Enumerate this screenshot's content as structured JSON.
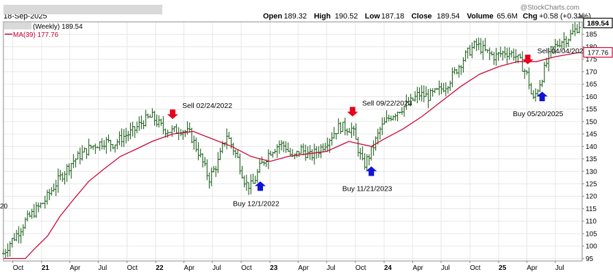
{
  "header": {
    "date": "18-Sep-2025",
    "watermark": "@StockCharts.com",
    "ohlc": [
      {
        "label": "Open",
        "value": "189.32"
      },
      {
        "label": "High",
        "value": "190.52"
      },
      {
        "label": "Low",
        "value": "187.18"
      },
      {
        "label": "Close",
        "value": "189.54"
      },
      {
        "label": "Volume",
        "value": "65.6M"
      },
      {
        "label": "Chg",
        "value": "+0.58 (+0.31%)"
      }
    ]
  },
  "legend": {
    "price": "(Weekly) 189.54",
    "ma": "MA(39) 177.76"
  },
  "colors": {
    "price": "#1a5e1a",
    "ma": "#cc0033",
    "sell_arrow": "#e8001c",
    "buy_arrow": "#1414d6",
    "grid": "#e6e6e6",
    "last_price_box": "#000000",
    "ma_box": "#cc0033"
  },
  "chart_data": {
    "type": "ohlc",
    "ylim": [
      94,
      190
    ],
    "xlim": [
      "2020-09-01",
      "2025-09-25"
    ],
    "y_ticks": [
      95,
      100,
      105,
      110,
      115,
      120,
      125,
      130,
      135,
      140,
      145,
      150,
      155,
      160,
      165,
      170,
      175,
      180,
      185
    ],
    "x_ticks": [
      {
        "date": "2020-10-01",
        "label": "Oct"
      },
      {
        "date": "2021-01-01",
        "label": "21",
        "year": true
      },
      {
        "date": "2021-04-01",
        "label": "Apr"
      },
      {
        "date": "2021-07-01",
        "label": "Jul"
      },
      {
        "date": "2021-10-01",
        "label": "Oct"
      },
      {
        "date": "2022-01-01",
        "label": "22",
        "year": true
      },
      {
        "date": "2022-04-01",
        "label": "Apr"
      },
      {
        "date": "2022-07-01",
        "label": "Jul"
      },
      {
        "date": "2022-10-01",
        "label": "Oct"
      },
      {
        "date": "2023-01-01",
        "label": "23",
        "year": true
      },
      {
        "date": "2023-04-01",
        "label": "Apr"
      },
      {
        "date": "2023-07-01",
        "label": "Jul"
      },
      {
        "date": "2023-10-01",
        "label": "Oct"
      },
      {
        "date": "2024-01-01",
        "label": "24",
        "year": true
      },
      {
        "date": "2024-04-01",
        "label": "Apr"
      },
      {
        "date": "2024-07-01",
        "label": "Jul"
      },
      {
        "date": "2024-10-01",
        "label": "Oct"
      },
      {
        "date": "2025-01-01",
        "label": "25",
        "year": true
      },
      {
        "date": "2025-04-01",
        "label": "Apr"
      },
      {
        "date": "2025-07-01",
        "label": "Jul"
      }
    ],
    "price_path": [
      [
        "2020-09-01",
        97
      ],
      [
        "2020-09-20",
        101
      ],
      [
        "2020-10-15",
        105
      ],
      [
        "2020-11-10",
        110
      ],
      [
        "2020-12-10",
        114
      ],
      [
        "2021-01-10",
        118
      ],
      [
        "2021-02-10",
        124
      ],
      [
        "2021-03-10",
        129
      ],
      [
        "2021-04-10",
        134
      ],
      [
        "2021-05-10",
        137
      ],
      [
        "2021-06-10",
        140
      ],
      [
        "2021-07-20",
        142
      ],
      [
        "2021-08-20",
        141
      ],
      [
        "2021-09-20",
        144
      ],
      [
        "2021-10-20",
        146
      ],
      [
        "2021-11-20",
        150
      ],
      [
        "2021-12-20",
        152
      ],
      [
        "2022-01-25",
        147
      ],
      [
        "2022-02-24",
        146
      ],
      [
        "2022-03-20",
        147
      ],
      [
        "2022-04-20",
        145
      ],
      [
        "2022-05-20",
        137
      ],
      [
        "2022-06-20",
        127
      ],
      [
        "2022-07-20",
        134
      ],
      [
        "2022-08-15",
        145
      ],
      [
        "2022-09-20",
        135
      ],
      [
        "2022-10-15",
        125
      ],
      [
        "2022-11-05",
        124
      ],
      [
        "2022-12-01",
        132
      ],
      [
        "2023-01-01",
        138
      ],
      [
        "2023-02-01",
        141
      ],
      [
        "2023-02-20",
        140
      ],
      [
        "2023-03-15",
        135
      ],
      [
        "2023-04-10",
        139
      ],
      [
        "2023-05-10",
        136
      ],
      [
        "2023-06-10",
        139
      ],
      [
        "2023-07-15",
        144
      ],
      [
        "2023-08-10",
        148
      ],
      [
        "2023-09-22",
        147
      ],
      [
        "2023-10-10",
        139
      ],
      [
        "2023-10-27",
        132
      ],
      [
        "2023-11-21",
        138
      ],
      [
        "2023-12-20",
        147
      ],
      [
        "2024-01-20",
        152
      ],
      [
        "2024-02-20",
        155
      ],
      [
        "2024-03-20",
        157
      ],
      [
        "2024-04-20",
        161
      ],
      [
        "2024-05-20",
        160
      ],
      [
        "2024-06-20",
        162
      ],
      [
        "2024-07-20",
        165
      ],
      [
        "2024-08-20",
        171
      ],
      [
        "2024-09-20",
        177
      ],
      [
        "2024-10-20",
        181
      ],
      [
        "2024-11-20",
        178
      ],
      [
        "2024-12-20",
        176
      ],
      [
        "2025-01-20",
        178
      ],
      [
        "2025-02-20",
        177
      ],
      [
        "2025-03-10",
        174
      ],
      [
        "2025-04-04",
        168
      ],
      [
        "2025-04-20",
        158
      ],
      [
        "2025-05-20",
        168
      ],
      [
        "2025-06-15",
        178
      ],
      [
        "2025-07-15",
        182
      ],
      [
        "2025-08-15",
        184
      ],
      [
        "2025-09-18",
        189
      ]
    ],
    "ma_path": [
      [
        "2020-09-01",
        95
      ],
      [
        "2020-11-10",
        95
      ],
      [
        "2020-12-10",
        99
      ],
      [
        "2021-01-20",
        104
      ],
      [
        "2021-03-01",
        112
      ],
      [
        "2021-04-15",
        119
      ],
      [
        "2021-06-01",
        126
      ],
      [
        "2021-07-20",
        131
      ],
      [
        "2021-09-10",
        136
      ],
      [
        "2021-11-01",
        139
      ],
      [
        "2021-12-20",
        142
      ],
      [
        "2022-02-24",
        145
      ],
      [
        "2022-05-01",
        146
      ],
      [
        "2022-07-01",
        143
      ],
      [
        "2022-09-01",
        140
      ],
      [
        "2022-11-01",
        136
      ],
      [
        "2023-01-01",
        134
      ],
      [
        "2023-03-01",
        136
      ],
      [
        "2023-05-01",
        137
      ],
      [
        "2023-07-01",
        138
      ],
      [
        "2023-09-10",
        142
      ],
      [
        "2023-11-21",
        140
      ],
      [
        "2024-01-01",
        143
      ],
      [
        "2024-03-01",
        147
      ],
      [
        "2024-05-01",
        152
      ],
      [
        "2024-07-01",
        158
      ],
      [
        "2024-09-01",
        164
      ],
      [
        "2024-11-01",
        169
      ],
      [
        "2025-01-01",
        172
      ],
      [
        "2025-03-01",
        174
      ],
      [
        "2025-05-01",
        174
      ],
      [
        "2025-07-01",
        176
      ],
      [
        "2025-09-18",
        177.76
      ]
    ],
    "signals": [
      {
        "type": "sell",
        "date": "2022-02-24",
        "label": "Sell 02/24/2022"
      },
      {
        "type": "buy",
        "date": "2022-12-01",
        "label": "Buy 12/1/2022"
      },
      {
        "type": "sell",
        "date": "2023-09-22",
        "label": "Sell 09/22/2023"
      },
      {
        "type": "buy",
        "date": "2023-11-21",
        "label": "Buy 11/21/2023"
      },
      {
        "type": "sell",
        "date": "2025-04-04",
        "label": "Sell 04/04/2025"
      },
      {
        "type": "buy",
        "date": "2025-05-20",
        "label": "Buy 05/20/2025"
      }
    ],
    "last_price": {
      "label": "189.54",
      "value": 189.54
    },
    "ma_last": {
      "label": "177.76",
      "value": 177.76
    },
    "left_edge_label": "20"
  }
}
